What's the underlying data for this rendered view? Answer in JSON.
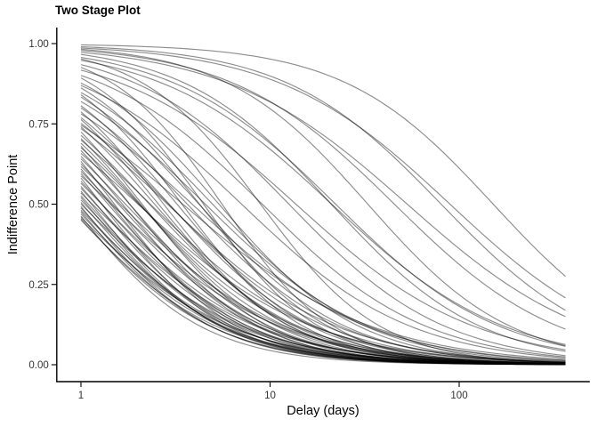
{
  "chart": {
    "title": "Two Stage Plot",
    "x_label": "Delay (days)",
    "y_label": "Indifference Point",
    "x_tick_labels": [
      "1",
      "10",
      "100"
    ],
    "y_tick_labels": [
      "0.00",
      "0.25",
      "0.50",
      "0.75",
      "1.00"
    ]
  },
  "chart_data": {
    "type": "line",
    "title": "Two Stage Plot",
    "xlabel": "Delay (days)",
    "ylabel": "Indifference Point",
    "x_scale": "log10",
    "x_ticks": [
      1,
      10,
      100
    ],
    "x_range": [
      1,
      365
    ],
    "y_ticks": [
      0.0,
      0.25,
      0.5,
      0.75,
      1.0
    ],
    "ylim": [
      0,
      1
    ],
    "grid": false,
    "legend": "none",
    "theme": "classic (left/bottom black axis lines only, white panel)",
    "model": "V = 1 / (1 + k * D^s)  (per-subject two-stage discounting fits, D in days)",
    "series": [
      {
        "k": 0.004,
        "s": 1.1
      },
      {
        "k": 0.01,
        "s": 1.05
      },
      {
        "k": 0.014,
        "s": 0.95
      },
      {
        "k": 0.018,
        "s": 1.15
      },
      {
        "k": 0.022,
        "s": 1.0
      },
      {
        "k": 0.028,
        "s": 0.9
      },
      {
        "k": 0.035,
        "s": 1.1
      },
      {
        "k": 0.045,
        "s": 1.0
      },
      {
        "k": 0.055,
        "s": 0.95
      },
      {
        "k": 0.07,
        "s": 1.05
      },
      {
        "k": 0.09,
        "s": 0.92
      },
      {
        "k": 0.11,
        "s": 1.0
      },
      {
        "k": 0.12,
        "s": 1.42
      },
      {
        "k": 0.08,
        "s": 1.47
      },
      {
        "k": 0.05,
        "s": 1.37
      },
      {
        "k": 0.14,
        "s": 1.17
      },
      {
        "k": 0.15,
        "s": 0.97
      },
      {
        "k": 0.16,
        "s": 1.27
      },
      {
        "k": 0.18,
        "s": 1.07
      },
      {
        "k": 0.19,
        "s": 1.35
      },
      {
        "k": 0.2,
        "s": 1.12
      },
      {
        "k": 0.22,
        "s": 1.0
      },
      {
        "k": 0.24,
        "s": 1.22
      },
      {
        "k": 0.25,
        "s": 1.07
      },
      {
        "k": 0.27,
        "s": 1.3
      },
      {
        "k": 0.28,
        "s": 0.94
      },
      {
        "k": 0.3,
        "s": 1.12
      },
      {
        "k": 0.31,
        "s": 1.24
      },
      {
        "k": 0.33,
        "s": 1.04
      },
      {
        "k": 0.34,
        "s": 0.87
      },
      {
        "k": 0.35,
        "s": 1.17
      },
      {
        "k": 0.36,
        "s": 0.97
      },
      {
        "k": 0.38,
        "s": 1.3
      },
      {
        "k": 0.4,
        "s": 1.1
      },
      {
        "k": 0.42,
        "s": 1.2
      },
      {
        "k": 0.43,
        "s": 1.0
      },
      {
        "k": 0.45,
        "s": 1.12
      },
      {
        "k": 0.47,
        "s": 1.27
      },
      {
        "k": 0.48,
        "s": 1.04
      },
      {
        "k": 0.5,
        "s": 1.17
      },
      {
        "k": 0.52,
        "s": 0.94
      },
      {
        "k": 0.54,
        "s": 1.22
      },
      {
        "k": 0.56,
        "s": 1.07
      },
      {
        "k": 0.58,
        "s": 1.34
      },
      {
        "k": 0.6,
        "s": 1.12
      },
      {
        "k": 0.62,
        "s": 1.0
      },
      {
        "k": 0.64,
        "s": 1.24
      },
      {
        "k": 0.66,
        "s": 1.08
      },
      {
        "k": 0.68,
        "s": 1.17
      },
      {
        "k": 0.7,
        "s": 0.97
      },
      {
        "k": 0.72,
        "s": 1.3
      },
      {
        "k": 0.75,
        "s": 1.12
      },
      {
        "k": 0.77,
        "s": 1.04
      },
      {
        "k": 0.8,
        "s": 1.2
      },
      {
        "k": 0.82,
        "s": 1.1
      },
      {
        "k": 0.85,
        "s": 1.27
      },
      {
        "k": 0.87,
        "s": 1.0
      },
      {
        "k": 0.9,
        "s": 1.14
      },
      {
        "k": 0.92,
        "s": 1.22
      },
      {
        "k": 0.95,
        "s": 1.07
      },
      {
        "k": 0.98,
        "s": 1.17
      },
      {
        "k": 1.0,
        "s": 1.02
      },
      {
        "k": 1.03,
        "s": 1.24
      },
      {
        "k": 1.05,
        "s": 1.12
      },
      {
        "k": 1.08,
        "s": 1.06
      },
      {
        "k": 1.1,
        "s": 1.2
      },
      {
        "k": 1.13,
        "s": 1.1
      },
      {
        "k": 1.16,
        "s": 1.27
      },
      {
        "k": 1.18,
        "s": 1.02
      },
      {
        "k": 1.2,
        "s": 1.15
      },
      {
        "k": 1.22,
        "s": 1.09
      }
    ],
    "style": {
      "line_color": "#000000",
      "line_alpha": 0.45,
      "line_width": 1.15,
      "axis_color": "#000000",
      "tick_text_color": "#333333",
      "background": "#ffffff"
    }
  }
}
